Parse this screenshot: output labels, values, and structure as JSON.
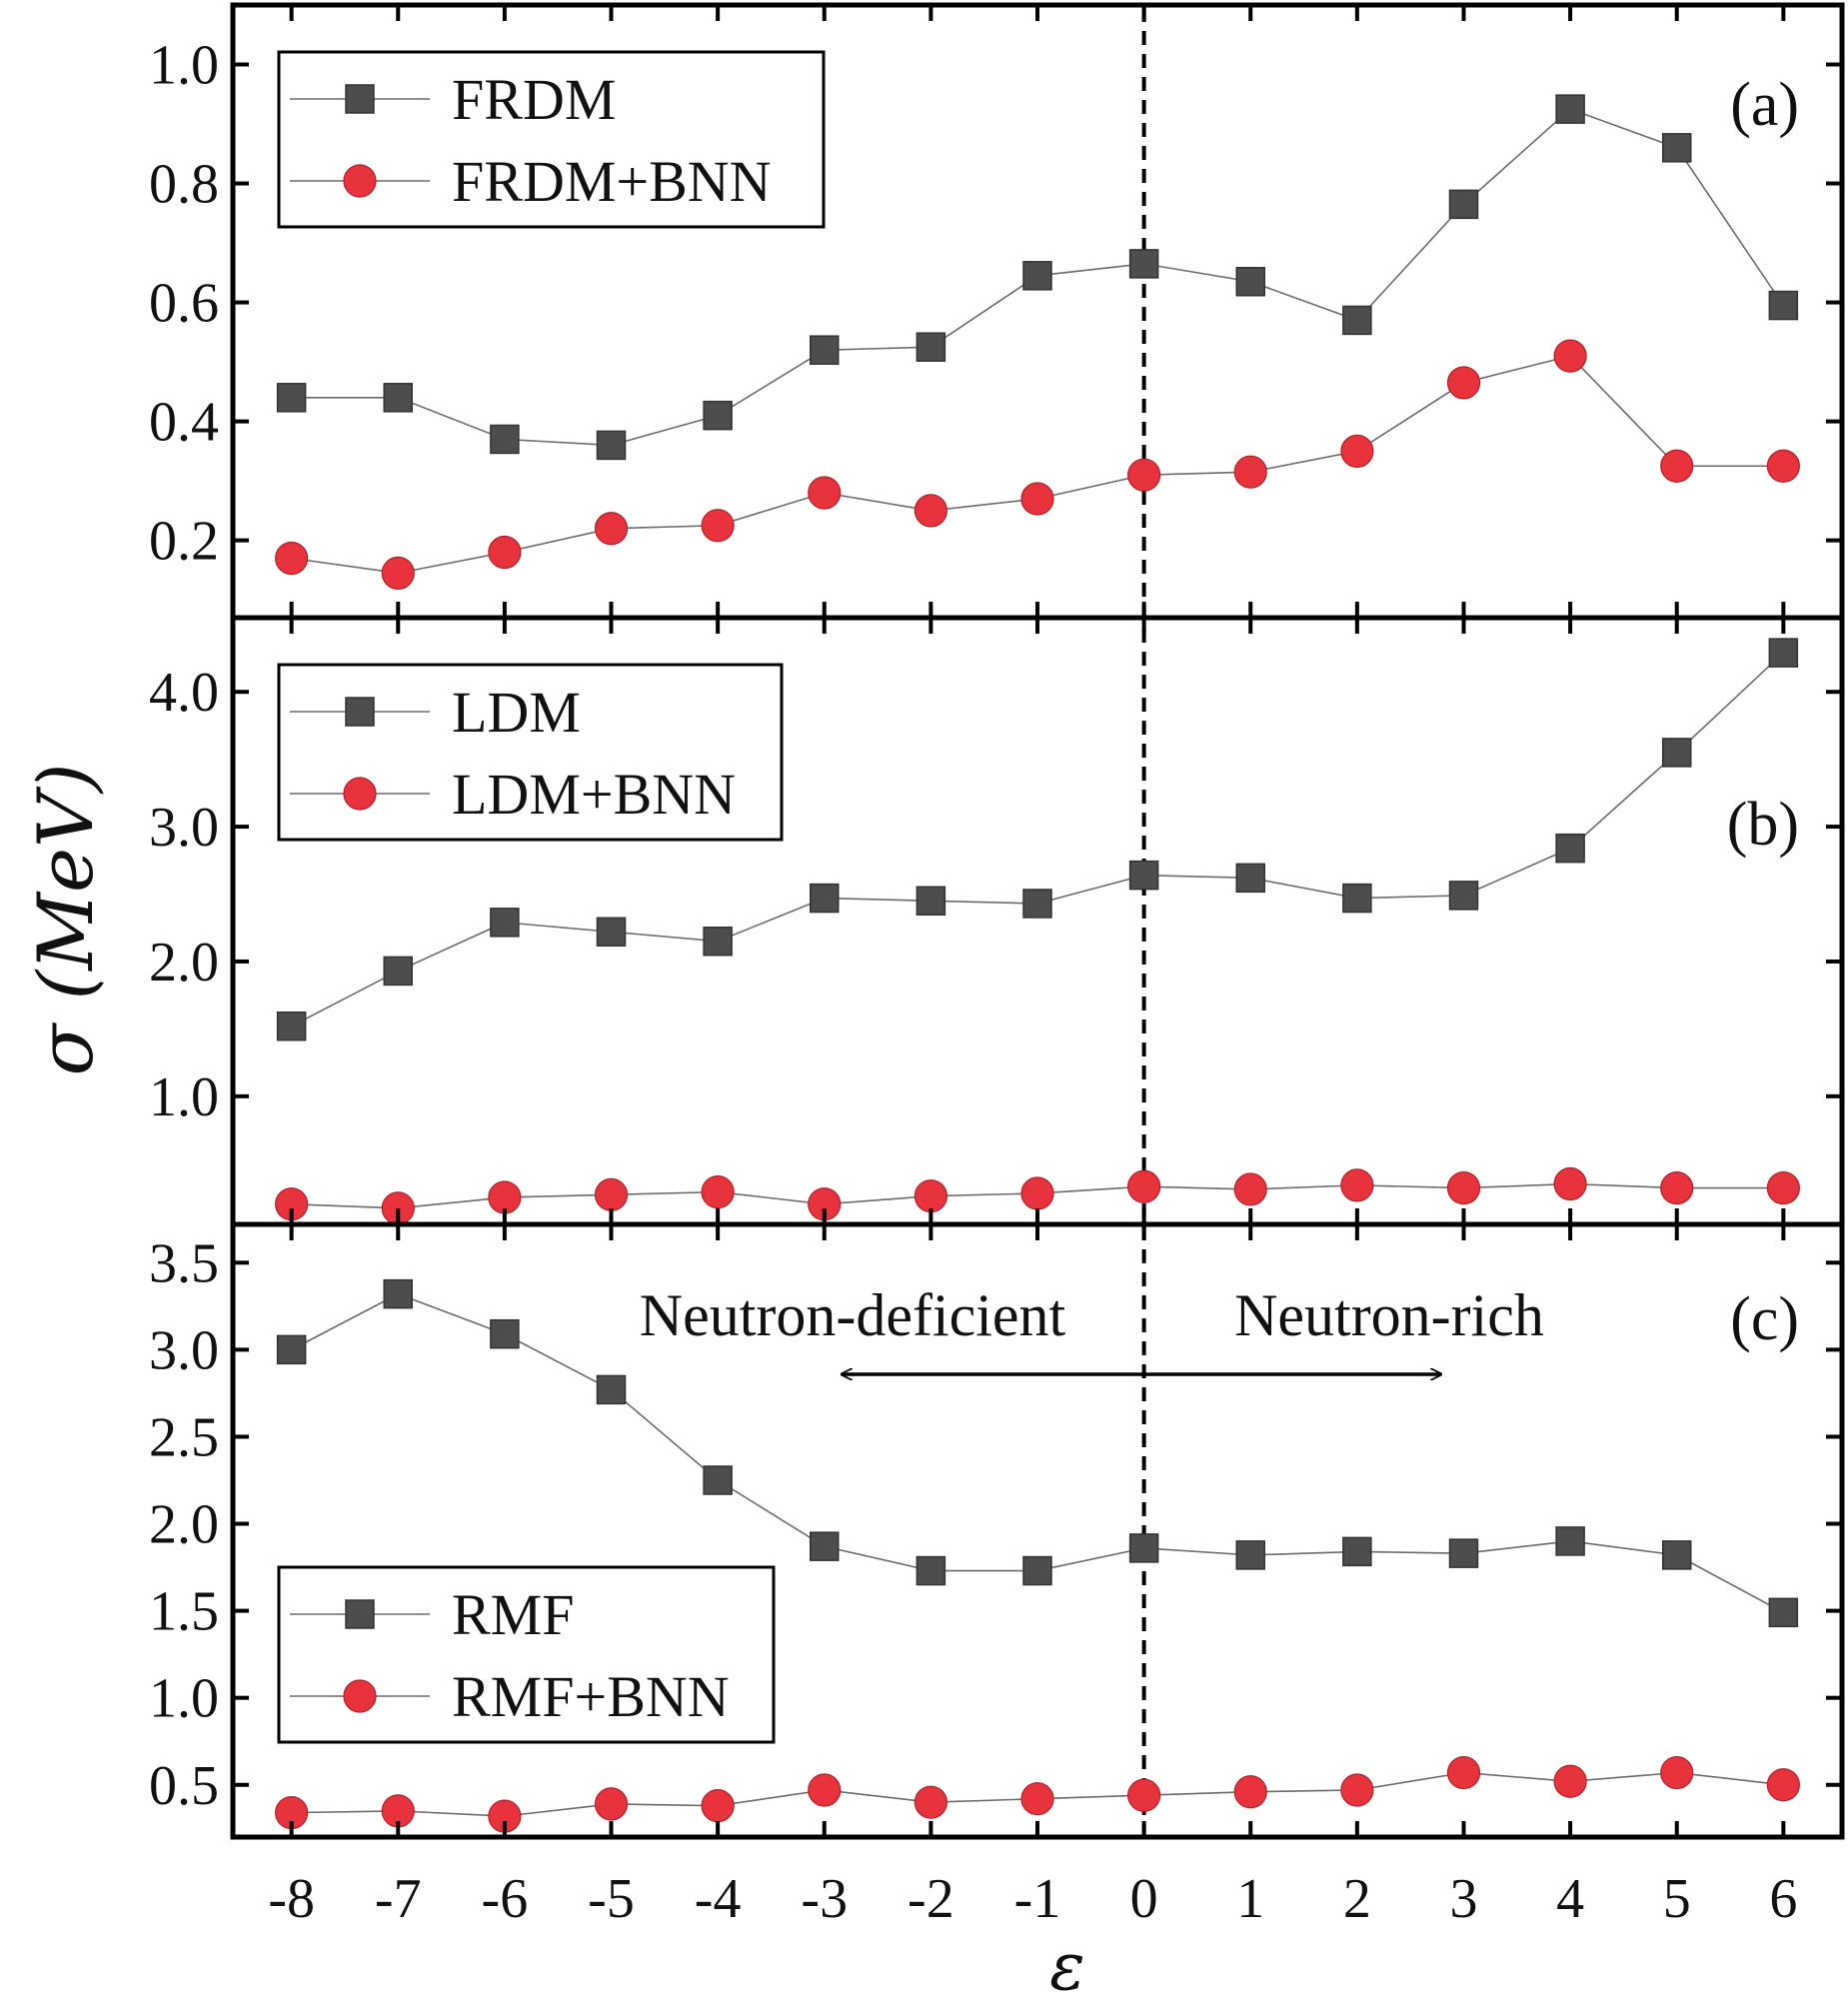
{
  "chart_data": {
    "type": "line",
    "xlabel": "ε",
    "ylabel": "σ (MeV)",
    "x": [
      -8,
      -7,
      -6,
      -5,
      -4,
      -3,
      -2,
      -1,
      0,
      1,
      2,
      3,
      4,
      5,
      6
    ],
    "x_tick_labels": [
      "-8",
      "-7",
      "-6",
      "-5",
      "-4",
      "-3",
      "-2",
      "-1",
      "0",
      "1",
      "2",
      "3",
      "4",
      "5",
      "6"
    ],
    "vertical_line_x": 0,
    "colors": {
      "model": "#4d4d4d",
      "bnn": "#e8323c"
    },
    "panels": [
      {
        "label": "(a)",
        "ylim": [
          0.07,
          1.1
        ],
        "yticks": [
          0.2,
          0.4,
          0.6,
          0.8,
          1.0
        ],
        "ytick_labels": [
          "0.2",
          "0.4",
          "0.6",
          "0.8",
          "1.0"
        ],
        "legend_position": "top-left",
        "series": [
          {
            "name": "FRDM",
            "marker": "square",
            "values": [
              0.44,
              0.44,
              0.37,
              0.36,
              0.41,
              0.52,
              0.525,
              0.645,
              0.665,
              0.635,
              0.57,
              0.765,
              0.925,
              0.86,
              0.595
            ]
          },
          {
            "name": "FRDM+BNN",
            "marker": "circle",
            "values": [
              0.17,
              0.145,
              0.18,
              0.22,
              0.225,
              0.28,
              0.25,
              0.27,
              0.31,
              0.315,
              0.35,
              0.465,
              0.51,
              0.325,
              0.325
            ]
          }
        ]
      },
      {
        "label": "(b)",
        "ylim": [
          0.05,
          4.55
        ],
        "yticks": [
          1.0,
          2.0,
          3.0,
          4.0
        ],
        "ytick_labels": [
          "1.0",
          "2.0",
          "3.0",
          "4.0"
        ],
        "legend_position": "top-left",
        "series": [
          {
            "name": "LDM",
            "marker": "square",
            "values": [
              1.52,
              1.93,
              2.29,
              2.22,
              2.15,
              2.47,
              2.45,
              2.43,
              2.64,
              2.62,
              2.47,
              2.49,
              2.84,
              3.55,
              4.29
            ]
          },
          {
            "name": "LDM+BNN",
            "marker": "circle",
            "values": [
              0.2,
              0.17,
              0.25,
              0.27,
              0.29,
              0.2,
              0.26,
              0.28,
              0.33,
              0.31,
              0.34,
              0.32,
              0.35,
              0.32,
              0.32
            ]
          }
        ]
      },
      {
        "label": "(c)",
        "ylim": [
          0.2,
          3.72
        ],
        "yticks": [
          0.5,
          1.0,
          1.5,
          2.0,
          2.5,
          3.0,
          3.5
        ],
        "ytick_labels": [
          "0.5",
          "1.0",
          "1.5",
          "2.0",
          "2.5",
          "3.0",
          "3.5"
        ],
        "legend_position": "bottom-left",
        "series": [
          {
            "name": "RMF",
            "marker": "square",
            "values": [
              3.0,
              3.32,
              3.09,
              2.77,
              2.25,
              1.87,
              1.73,
              1.73,
              1.86,
              1.82,
              1.84,
              1.83,
              1.9,
              1.82,
              1.49
            ]
          },
          {
            "name": "RMF+BNN",
            "marker": "circle",
            "values": [
              0.34,
              0.35,
              0.32,
              0.39,
              0.38,
              0.47,
              0.4,
              0.42,
              0.44,
              0.46,
              0.47,
              0.57,
              0.52,
              0.57,
              0.5
            ]
          }
        ]
      }
    ],
    "annotations": [
      {
        "text": "Neutron-deficient",
        "arrow": "left"
      },
      {
        "text": "Neutron-rich",
        "arrow": "right"
      }
    ]
  }
}
